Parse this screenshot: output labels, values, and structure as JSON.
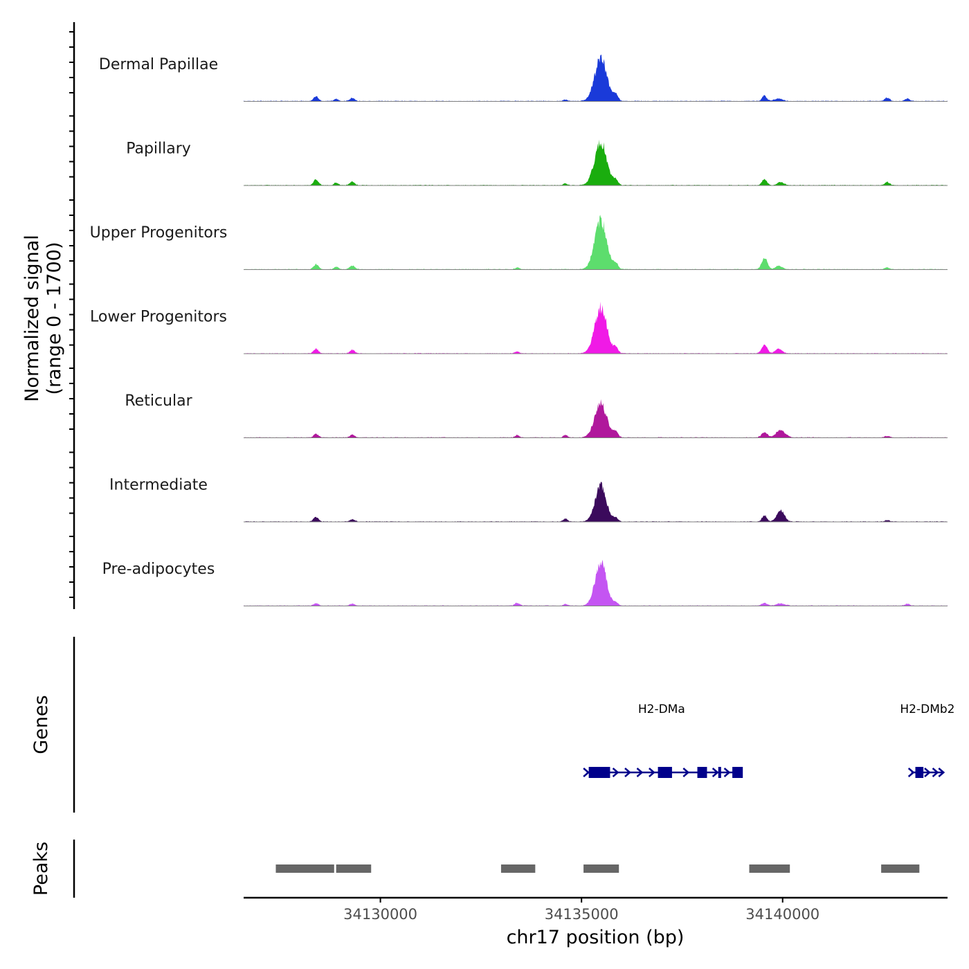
{
  "chart_data": {
    "type": "area",
    "title": "",
    "ylabel": "Normalized signal",
    "ylabel_range": "(range 0 - 1700)",
    "ylim": [
      0,
      1700
    ],
    "xlabel": "chr17 position (bp)",
    "xlim": [
      34126600,
      34144100
    ],
    "xticks": [
      34130000,
      34135000,
      34140000
    ],
    "xtick_labels": [
      "34130000",
      "34135000",
      "34140000"
    ],
    "background_noise": 22,
    "series": [
      {
        "name": "Dermal Papillae",
        "color": "#1a3ad9",
        "peaks": [
          {
            "pos": 34128400,
            "height": 160,
            "width": 60
          },
          {
            "pos": 34128900,
            "height": 80,
            "width": 50
          },
          {
            "pos": 34129300,
            "height": 110,
            "width": 60
          },
          {
            "pos": 34134600,
            "height": 60,
            "width": 50
          },
          {
            "pos": 34135480,
            "height": 1450,
            "width": 150
          },
          {
            "pos": 34135850,
            "height": 200,
            "width": 60
          },
          {
            "pos": 34139550,
            "height": 180,
            "width": 60
          },
          {
            "pos": 34139900,
            "height": 90,
            "width": 100
          },
          {
            "pos": 34142600,
            "height": 130,
            "width": 60
          },
          {
            "pos": 34143100,
            "height": 90,
            "width": 60
          }
        ]
      },
      {
        "name": "Papillary",
        "color": "#1aad0e",
        "peaks": [
          {
            "pos": 34128400,
            "height": 200,
            "width": 60
          },
          {
            "pos": 34128900,
            "height": 90,
            "width": 50
          },
          {
            "pos": 34129300,
            "height": 120,
            "width": 60
          },
          {
            "pos": 34134600,
            "height": 60,
            "width": 50
          },
          {
            "pos": 34135480,
            "height": 1500,
            "width": 150
          },
          {
            "pos": 34135850,
            "height": 160,
            "width": 60
          },
          {
            "pos": 34139550,
            "height": 200,
            "width": 60
          },
          {
            "pos": 34139950,
            "height": 110,
            "width": 80
          },
          {
            "pos": 34142600,
            "height": 110,
            "width": 60
          }
        ]
      },
      {
        "name": "Upper Progenitors",
        "color": "#5ddd6d",
        "peaks": [
          {
            "pos": 34128400,
            "height": 170,
            "width": 60
          },
          {
            "pos": 34128900,
            "height": 90,
            "width": 50
          },
          {
            "pos": 34129300,
            "height": 130,
            "width": 60
          },
          {
            "pos": 34133400,
            "height": 60,
            "width": 50
          },
          {
            "pos": 34135480,
            "height": 1650,
            "width": 150
          },
          {
            "pos": 34135850,
            "height": 180,
            "width": 60
          },
          {
            "pos": 34139550,
            "height": 380,
            "width": 70
          },
          {
            "pos": 34139900,
            "height": 120,
            "width": 80
          },
          {
            "pos": 34142600,
            "height": 60,
            "width": 60
          }
        ]
      },
      {
        "name": "Lower Progenitors",
        "color": "#f01ae6",
        "peaks": [
          {
            "pos": 34128400,
            "height": 150,
            "width": 60
          },
          {
            "pos": 34129300,
            "height": 120,
            "width": 60
          },
          {
            "pos": 34133400,
            "height": 60,
            "width": 50
          },
          {
            "pos": 34135480,
            "height": 1550,
            "width": 150
          },
          {
            "pos": 34135850,
            "height": 180,
            "width": 60
          },
          {
            "pos": 34139550,
            "height": 300,
            "width": 70
          },
          {
            "pos": 34139900,
            "height": 160,
            "width": 80
          }
        ]
      },
      {
        "name": "Reticular",
        "color": "#b0189c",
        "peaks": [
          {
            "pos": 34128400,
            "height": 120,
            "width": 60
          },
          {
            "pos": 34129300,
            "height": 90,
            "width": 60
          },
          {
            "pos": 34133400,
            "height": 80,
            "width": 50
          },
          {
            "pos": 34134600,
            "height": 90,
            "width": 50
          },
          {
            "pos": 34135480,
            "height": 1150,
            "width": 150
          },
          {
            "pos": 34135850,
            "height": 180,
            "width": 60
          },
          {
            "pos": 34139550,
            "height": 180,
            "width": 70
          },
          {
            "pos": 34139950,
            "height": 260,
            "width": 110
          },
          {
            "pos": 34142600,
            "height": 50,
            "width": 60
          }
        ]
      },
      {
        "name": "Intermediate",
        "color": "#3b0a5c",
        "peaks": [
          {
            "pos": 34128400,
            "height": 160,
            "width": 60
          },
          {
            "pos": 34129300,
            "height": 80,
            "width": 60
          },
          {
            "pos": 34134600,
            "height": 100,
            "width": 50
          },
          {
            "pos": 34135480,
            "height": 1200,
            "width": 140
          },
          {
            "pos": 34135850,
            "height": 120,
            "width": 60
          },
          {
            "pos": 34139550,
            "height": 210,
            "width": 60
          },
          {
            "pos": 34139950,
            "height": 400,
            "width": 90
          },
          {
            "pos": 34142600,
            "height": 50,
            "width": 60
          }
        ]
      },
      {
        "name": "Pre-adipocytes",
        "color": "#c455f2",
        "peaks": [
          {
            "pos": 34128400,
            "height": 80,
            "width": 60
          },
          {
            "pos": 34129300,
            "height": 70,
            "width": 60
          },
          {
            "pos": 34133400,
            "height": 90,
            "width": 60
          },
          {
            "pos": 34134600,
            "height": 60,
            "width": 50
          },
          {
            "pos": 34135480,
            "height": 1480,
            "width": 140
          },
          {
            "pos": 34135850,
            "height": 100,
            "width": 60
          },
          {
            "pos": 34139550,
            "height": 90,
            "width": 70
          },
          {
            "pos": 34139950,
            "height": 80,
            "width": 100
          },
          {
            "pos": 34143100,
            "height": 60,
            "width": 60
          }
        ]
      }
    ],
    "genes_track": {
      "label": "Genes",
      "color": "#00008b",
      "genes": [
        {
          "name": "H2-DMa",
          "start": 34135130,
          "end": 34138850,
          "strand": "+",
          "exons": [
            [
              34135180,
              34135710
            ],
            [
              34136900,
              34137250
            ],
            [
              34137880,
              34138120
            ],
            [
              34138400,
              34138470
            ],
            [
              34138750,
              34139010
            ]
          ],
          "arrows": [
            34135120,
            34135850,
            34136150,
            34136450,
            34136750,
            34137600,
            34138330,
            34138620
          ]
        },
        {
          "name": "H2-DMb2",
          "start": 34143200,
          "end": 34144000,
          "strand": "+",
          "exons": [
            [
              34143300,
              34143500
            ]
          ],
          "arrows": [
            34143200,
            34143600,
            34143800,
            34143950
          ]
        }
      ]
    },
    "peaks_track": {
      "label": "Peaks",
      "color": "#666666",
      "regions": [
        [
          34127400,
          34128850
        ],
        [
          34128900,
          34129770
        ],
        [
          34133000,
          34133850
        ],
        [
          34135050,
          34135930
        ],
        [
          34139170,
          34140180
        ],
        [
          34142450,
          34143400
        ]
      ]
    }
  }
}
